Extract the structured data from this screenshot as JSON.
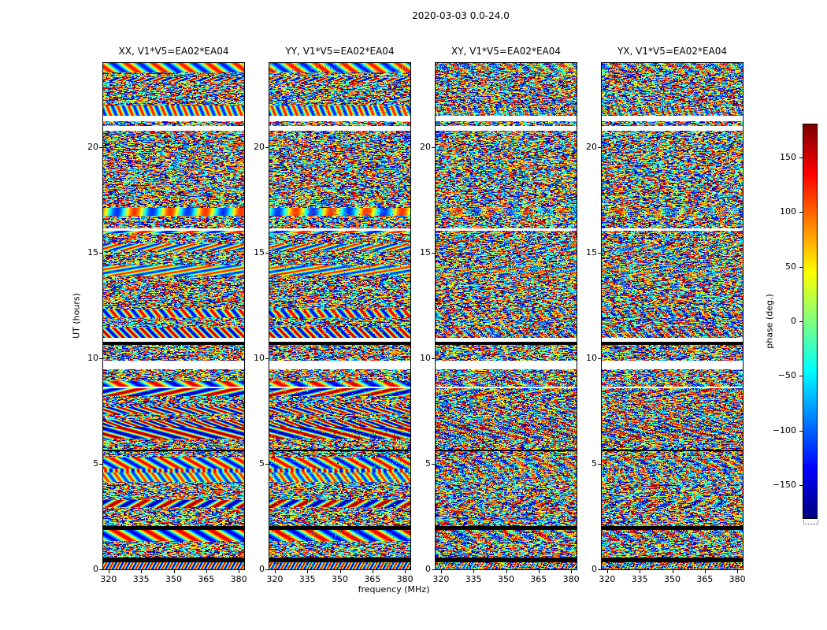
{
  "figure": {
    "title": "2020-03-03 0.0-24.0",
    "xlabel": "frequency (MHz)",
    "ylabel": "UT (hours)"
  },
  "panels": [
    {
      "pol": "XX",
      "title": "XX, V1*V5=EA02*EA04"
    },
    {
      "pol": "YY",
      "title": "YY, V1*V5=EA02*EA04"
    },
    {
      "pol": "XY",
      "title": "XY, V1*V5=EA02*EA04"
    },
    {
      "pol": "YX",
      "title": "YX, V1*V5=EA02*EA04"
    }
  ],
  "axes": {
    "x_ticks": [
      320,
      335,
      350,
      365,
      380
    ],
    "x_range": [
      317.5,
      382.5
    ],
    "y_ticks": [
      0,
      5,
      10,
      15,
      20
    ],
    "y_range": [
      0,
      24
    ]
  },
  "colorbar": {
    "label": "phase (deg.)",
    "ticks": [
      150,
      100,
      50,
      0,
      -50,
      -100,
      -150
    ],
    "range": [
      -180,
      180
    ],
    "colormap": "jet"
  },
  "colors": {
    "background": "#ffffff",
    "axis": "#000000",
    "flagged_rows": "#000000",
    "blank_rows": "#ffffff"
  },
  "chart_data": {
    "type": "heatmap",
    "title": "2020-03-03 0.0-24.0",
    "xlabel": "frequency (MHz)",
    "ylabel": "UT (hours)",
    "x_range_mhz": [
      317.5,
      382.5
    ],
    "x_tick_labels": [
      "320",
      "335",
      "350",
      "365",
      "380"
    ],
    "y_range_hours": [
      0,
      24
    ],
    "y_tick_labels": [
      "0",
      "5",
      "10",
      "15",
      "20"
    ],
    "value_label": "phase (deg.)",
    "value_range_deg": [
      -180,
      180
    ],
    "colormap": "jet",
    "colorbar_tick_labels": [
      "150",
      "100",
      "50",
      "0",
      "-50",
      "-100",
      "-150"
    ],
    "panels": [
      "XX, V1*V5=EA02*EA04",
      "YY, V1*V5=EA02*EA04",
      "XY, V1*V5=EA02*EA04",
      "YX, V1*V5=EA02*EA04"
    ],
    "description": "Four dynamic-spectrum panels of interferometric visibility phase for baseline V1*V5 = EA02*EA04 on 2020-03-03, UT 0.0-24.0, plotted versus frequency (~317-383 MHz) and UT time (0-24 h). Values are noise-like phases spanning -180..180 deg arranged in horizontal scan bands; thin white (blank/unsampled) gaps and black (flagged) rows align across all four panels. XX and YY panels show coherent rainbow fringe bands (notably near UT ~12-14 h and ~21-22 h); XY and YX appear as more uniform speckle noise."
  },
  "render": {
    "seed": 20200303,
    "panel_seeds": [
      101,
      202,
      303,
      404
    ],
    "fringe_coherence": [
      1.0,
      0.95,
      0.4,
      0.4
    ]
  }
}
